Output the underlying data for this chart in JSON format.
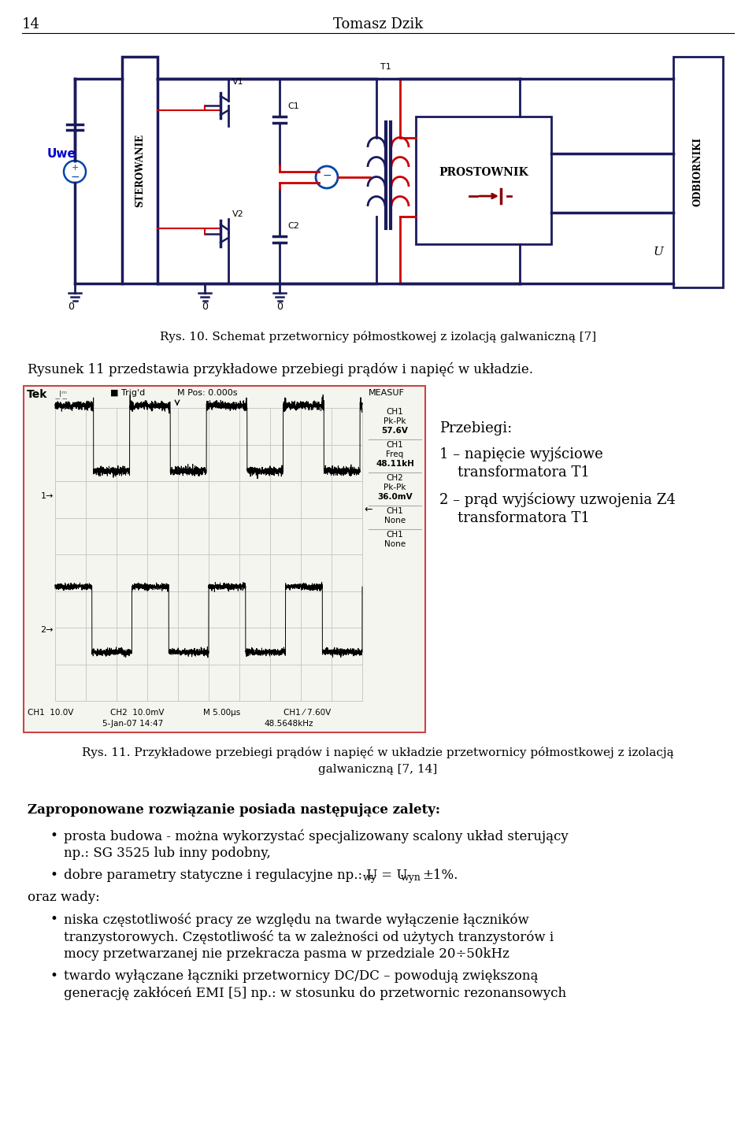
{
  "page_number": "14",
  "author": "Tomasz Dzik",
  "fig10_caption": "Rys. 10. Schemat przetwornicy półmostkowej z izolacją galwaniczną [7]",
  "intro_text": "Rysunek 11 przedstawia przykładowe przebiegi prądów i napięć w układzie.",
  "legend_title": "Przebiegi:",
  "legend_line1": "1 – napięcie wyjściowe",
  "legend_line2": "    transformatora T1",
  "legend_line3": "2 – prąd wyjściowy uzwojenia Z4",
  "legend_line4": "    transformatora T1",
  "fig11_caption_line1": "Rys. 11. Przykładowe przebiegi prądów i napięć w układzie przetwornicy półmostkowej z izolacją",
  "fig11_caption_line2": "galwaniczną [7, 14]",
  "section_title": "Zaproponowane rozwiązanie posiada następujące zalety:",
  "bullet1a": "prosta budowa - można wykorzystać specjalizowany scalony układ sterujący",
  "bullet1b": "np.: SG 3525 lub inny podobny,",
  "bullet2a": "dobre parametry statyczne i regulacyjne np.: U",
  "bullet2b": "wy",
  "bullet2c": " = U",
  "bullet2d": "wyn",
  "bullet2e": "±1%.",
  "and_disadvantages": "oraz wady:",
  "bullet3a": "niska częstotliwość pracy ze względu na twarde wyłączenie łączników",
  "bullet3b": "tranzystorowych. Częstotliwość ta w zależności od użytych tranzystorów i",
  "bullet3c": "mocy przetwarzanej nie przekracza pasma w przedziale 20÷50kHz",
  "bullet4a": "twardo wyłączane łączniki przetwornicy DC/DC – powodują zwiększoną",
  "bullet4b": "generację zakłóceń EMI [5] np.: w stosunku do przetwornic rezonansowych",
  "background_color": "#ffffff",
  "text_color": "#000000",
  "circuit_dark": "#1a1a5c",
  "circuit_red": "#cc0000",
  "circuit_blue": "#0044aa",
  "uwe_color": "#0000cc"
}
